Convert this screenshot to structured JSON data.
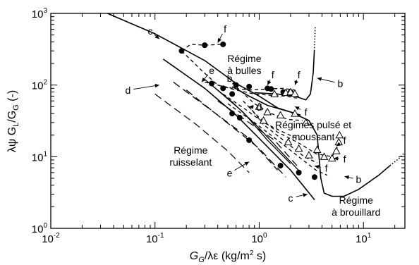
{
  "chart_data": {
    "type": "line",
    "title": "",
    "x_axis": {
      "label_main": "G",
      "label_sub": "G",
      "label_rest": "/λε (kg/m",
      "label_sup": "2",
      "label_end": " s)",
      "scale": "log",
      "range": [
        0.01,
        25
      ],
      "ticks": [
        0.01,
        0.1,
        1,
        10
      ],
      "tick_mant": [
        "10",
        "10",
        "10",
        "10"
      ],
      "tick_exp": [
        "-2",
        "-1",
        "0",
        "1"
      ]
    },
    "y_axis": {
      "label_pre": "λψ G",
      "label_sub1": "L",
      "label_mid": "/G",
      "label_sub2": "G",
      "label_end": " (-)",
      "scale": "log",
      "range": [
        1,
        1000
      ],
      "ticks": [
        1,
        10,
        100,
        1000
      ],
      "tick_mant": [
        "10",
        "10",
        "10",
        "10"
      ],
      "tick_exp": [
        "0",
        "1",
        "2",
        "3"
      ]
    },
    "regime_labels": [
      {
        "id": "regime-a-bulles",
        "lines": [
          "Régime",
          "à bulles"
        ],
        "x": 0.72,
        "y": 210
      },
      {
        "id": "regime-pulse-moussant",
        "lines": [
          "Régimes pulsé et",
          "moussant"
        ],
        "x": 3.3,
        "y": 25
      },
      {
        "id": "regime-ruisselant",
        "lines": [
          "Régime",
          "ruisselant"
        ],
        "x": 0.22,
        "y": 11
      },
      {
        "id": "regime-a-brouillard",
        "lines": [
          "Régime",
          "à brouillard"
        ],
        "x": 8.5,
        "y": 2.2
      }
    ],
    "series": [
      {
        "id": "c",
        "style": "solid",
        "width": 1.6,
        "points": [
          [
            0.035,
            1000
          ],
          [
            0.1,
            520
          ],
          [
            0.3,
            220
          ],
          [
            0.6,
            105
          ],
          [
            1.0,
            70
          ],
          [
            1.5,
            48
          ],
          [
            2.5,
            38
          ]
        ]
      },
      {
        "id": "c",
        "style": "solid",
        "width": 1.6,
        "points": [
          [
            0.12,
            230
          ],
          [
            0.3,
            90
          ],
          [
            0.6,
            38
          ],
          [
            1.0,
            18
          ],
          [
            2.0,
            6.5
          ],
          [
            3.4,
            2.5
          ]
        ]
      },
      {
        "id": "b",
        "style": "solid",
        "width": 1.6,
        "points": [
          [
            0.55,
            95
          ],
          [
            0.8,
            70
          ],
          [
            1.2,
            52
          ],
          [
            2.0,
            42
          ],
          [
            3.0,
            32
          ],
          [
            3.6,
            20
          ],
          [
            3.9,
            5
          ],
          [
            4.2,
            3.1
          ],
          [
            5.0,
            2.8
          ],
          [
            6.5,
            2.8
          ],
          [
            9,
            3.5
          ],
          [
            14,
            5.5
          ],
          [
            18,
            7.5
          ]
        ]
      },
      {
        "id": "b",
        "style": "dotted",
        "width": 1.6,
        "points": [
          [
            18,
            7.5
          ],
          [
            22,
            9.5
          ],
          [
            25,
            11.5
          ]
        ]
      },
      {
        "id": "b",
        "style": "solid",
        "width": 1.6,
        "points": [
          [
            0.9,
            78
          ],
          [
            1.5,
            75
          ],
          [
            2.2,
            70
          ],
          [
            2.8,
            62
          ],
          [
            3.1,
            75
          ],
          [
            3.3,
            150
          ],
          [
            3.38,
            300
          ]
        ]
      },
      {
        "id": "b",
        "style": "dotted",
        "width": 1.6,
        "points": [
          [
            3.38,
            300
          ],
          [
            3.45,
            650
          ]
        ]
      },
      {
        "id": "a",
        "style": "solid",
        "width": 1.3,
        "points": [
          [
            0.3,
            120
          ],
          [
            0.55,
            58
          ],
          [
            1.0,
            25
          ],
          [
            1.6,
            12
          ],
          [
            2.5,
            6
          ]
        ]
      },
      {
        "id": "a",
        "style": "solid",
        "width": 1.3,
        "points": [
          [
            0.35,
            100
          ],
          [
            0.7,
            42
          ],
          [
            1.2,
            17
          ],
          [
            2.0,
            8
          ]
        ]
      },
      {
        "id": "e",
        "style": "dashed",
        "width": 1.3,
        "points": [
          [
            0.15,
            110
          ],
          [
            0.8,
            18
          ],
          [
            1.5,
            6.5
          ]
        ]
      },
      {
        "id": "e",
        "style": "dashed",
        "width": 1.3,
        "points": [
          [
            0.2,
            85
          ],
          [
            1.0,
            13
          ],
          [
            1.8,
            5.2
          ]
        ]
      },
      {
        "id": "e",
        "style": "dashed",
        "width": 1.3,
        "points": [
          [
            0.4,
            60
          ],
          [
            1.4,
            17
          ],
          [
            2.3,
            7.5
          ]
        ]
      },
      {
        "id": "d",
        "style": "dashed",
        "width": 1.2,
        "points": [
          [
            0.1,
            75
          ],
          [
            0.25,
            28
          ],
          [
            0.5,
            12
          ],
          [
            0.8,
            6
          ]
        ]
      },
      {
        "id": "f",
        "style": "shortdash",
        "width": 1.3,
        "points": [
          [
            0.18,
            300
          ],
          [
            0.22,
            370
          ],
          [
            0.3,
            360
          ],
          [
            0.45,
            370
          ]
        ]
      },
      {
        "id": "f",
        "style": "shortdash",
        "width": 1.3,
        "points": [
          [
            0.18,
            300
          ],
          [
            0.28,
            160
          ],
          [
            0.4,
            100
          ],
          [
            0.6,
            85
          ],
          [
            0.9,
            75
          ],
          [
            1.3,
            72
          ],
          [
            1.8,
            70
          ],
          [
            2.4,
            65
          ]
        ]
      },
      {
        "id": "f",
        "style": "shortdash",
        "width": 1.3,
        "points": [
          [
            0.3,
            110
          ],
          [
            0.55,
            90
          ],
          [
            0.8,
            85
          ],
          [
            1.2,
            88
          ],
          [
            1.7,
            90
          ],
          [
            2.2,
            85
          ]
        ]
      },
      {
        "id": "f",
        "style": "shortdash",
        "width": 1.3,
        "points": [
          [
            0.6,
            95
          ],
          [
            0.9,
            55
          ],
          [
            1.3,
            40
          ],
          [
            1.9,
            33
          ],
          [
            2.6,
            32
          ]
        ]
      },
      {
        "id": "f",
        "style": "shortdash",
        "width": 1.3,
        "points": [
          [
            0.7,
            60
          ],
          [
            1.0,
            35
          ],
          [
            1.5,
            22
          ],
          [
            2.5,
            15
          ],
          [
            3.5,
            11
          ],
          [
            5.0,
            10
          ],
          [
            5.7,
            14
          ],
          [
            5.8,
            20
          ]
        ]
      },
      {
        "id": "f",
        "style": "shortdash",
        "width": 1.3,
        "points": [
          [
            0.8,
            50
          ],
          [
            1.1,
            28
          ],
          [
            1.8,
            16
          ],
          [
            2.7,
            10
          ],
          [
            3.6,
            8.2
          ]
        ]
      },
      {
        "id": "f",
        "style": "shortdash",
        "width": 1.3,
        "points": [
          [
            0.5,
            55
          ],
          [
            0.9,
            30
          ],
          [
            1.5,
            17
          ],
          [
            2.5,
            9.5
          ],
          [
            3.5,
            6.5
          ],
          [
            4.5,
            5.5
          ]
        ]
      },
      {
        "id": "f",
        "style": "shortdash",
        "width": 1.3,
        "points": [
          [
            0.45,
            75
          ],
          [
            0.75,
            45
          ],
          [
            1.1,
            30
          ],
          [
            1.7,
            22
          ],
          [
            2.5,
            17
          ]
        ]
      }
    ],
    "markers_circle": [
      [
        0.18,
        300
      ],
      [
        0.3,
        360
      ],
      [
        0.45,
        370
      ],
      [
        0.35,
        105
      ],
      [
        0.45,
        90
      ],
      [
        0.55,
        75
      ],
      [
        0.6,
        100
      ],
      [
        0.8,
        95
      ],
      [
        1.2,
        90
      ],
      [
        1.3,
        88
      ],
      [
        1.7,
        80
      ],
      [
        2.0,
        80
      ],
      [
        0.55,
        40
      ],
      [
        0.65,
        35
      ],
      [
        0.8,
        17
      ],
      [
        1.6,
        7.5
      ],
      [
        2.4,
        6
      ],
      [
        3.4,
        5.2
      ]
    ],
    "markers_triangle": [
      [
        1.4,
        75
      ],
      [
        1.8,
        78
      ],
      [
        2.0,
        80
      ],
      [
        2.2,
        76
      ],
      [
        1.2,
        42
      ],
      [
        1.6,
        38
      ],
      [
        1.0,
        50
      ],
      [
        2.2,
        40
      ],
      [
        2.8,
        30
      ],
      [
        1.9,
        16
      ],
      [
        2.4,
        13
      ],
      [
        3.0,
        10.5
      ],
      [
        3.6,
        12.5
      ],
      [
        4.2,
        10
      ],
      [
        5.0,
        9.5
      ],
      [
        5.5,
        12
      ],
      [
        5.8,
        16
      ],
      [
        5.9,
        20
      ],
      [
        1.1,
        32
      ]
    ],
    "curve_labels": [
      {
        "text": "c",
        "x": 0.09,
        "y": 570,
        "tip_x": 0.11,
        "tip_y": 440
      },
      {
        "text": "f",
        "x": 0.47,
        "y": 610,
        "tip_x": 0.4,
        "tip_y": 390
      },
      {
        "text": "e",
        "x": 0.35,
        "y": 160,
        "tip_x": 0.28,
        "tip_y": 110
      },
      {
        "text": "b",
        "x": 0.52,
        "y": 125,
        "tip_x": 0.6,
        "tip_y": 98
      },
      {
        "text": "f",
        "x": 1.35,
        "y": 140,
        "tip_x": 1.2,
        "tip_y": 100
      },
      {
        "text": "f",
        "x": 2.4,
        "y": 140,
        "tip_x": 2.2,
        "tip_y": 100
      },
      {
        "text": "b",
        "x": 6.0,
        "y": 105,
        "tip_x": 3.6,
        "tip_y": 125
      },
      {
        "text": "d",
        "x": 0.055,
        "y": 85,
        "tip_x": 0.11,
        "tip_y": 100
      },
      {
        "text": "d",
        "x": 1.0,
        "y": 49,
        "tip_x": 0.8,
        "tip_y": 50
      },
      {
        "text": "f",
        "x": 2.8,
        "y": 42,
        "tip_x": 2.2,
        "tip_y": 50
      },
      {
        "text": "f",
        "x": 6.6,
        "y": 17,
        "tip_x": 5.5,
        "tip_y": 14
      },
      {
        "text": "f",
        "x": 6.6,
        "y": 9.3,
        "tip_x": 5.2,
        "tip_y": 9.5
      },
      {
        "text": "f",
        "x": 4.4,
        "y": 6.9,
        "tip_x": 3.4,
        "tip_y": 7.4
      },
      {
        "text": "e",
        "x": 0.52,
        "y": 5.9,
        "tip_x": 0.8,
        "tip_y": 8.5
      },
      {
        "text": "c",
        "x": 2.0,
        "y": 2.65,
        "tip_x": 2.9,
        "tip_y": 3
      },
      {
        "text": "b",
        "x": 9.0,
        "y": 4.8,
        "tip_x": 6.6,
        "tip_y": 5.3
      }
    ]
  }
}
